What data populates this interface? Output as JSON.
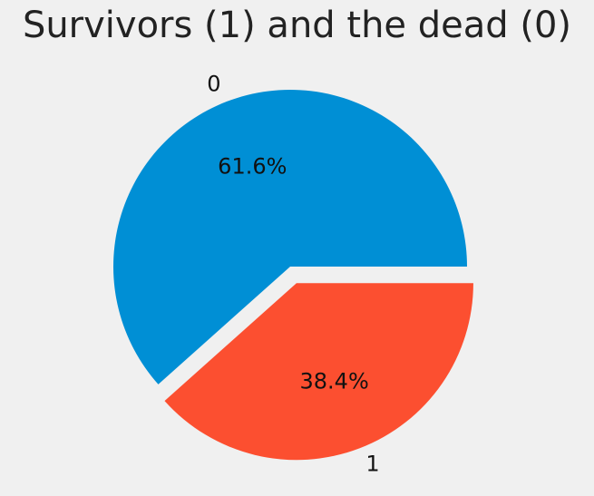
{
  "chart_data": {
    "type": "pie",
    "title": "Survivors (1) and the dead (0)",
    "categories": [
      "0",
      "1"
    ],
    "values": [
      61.6,
      38.4
    ],
    "percent_labels": [
      "61.6%",
      "38.4%"
    ],
    "colors": [
      "#008fd5",
      "#fc4f30"
    ],
    "exploded": [
      false,
      true
    ],
    "xlabel": "",
    "ylabel": ""
  }
}
